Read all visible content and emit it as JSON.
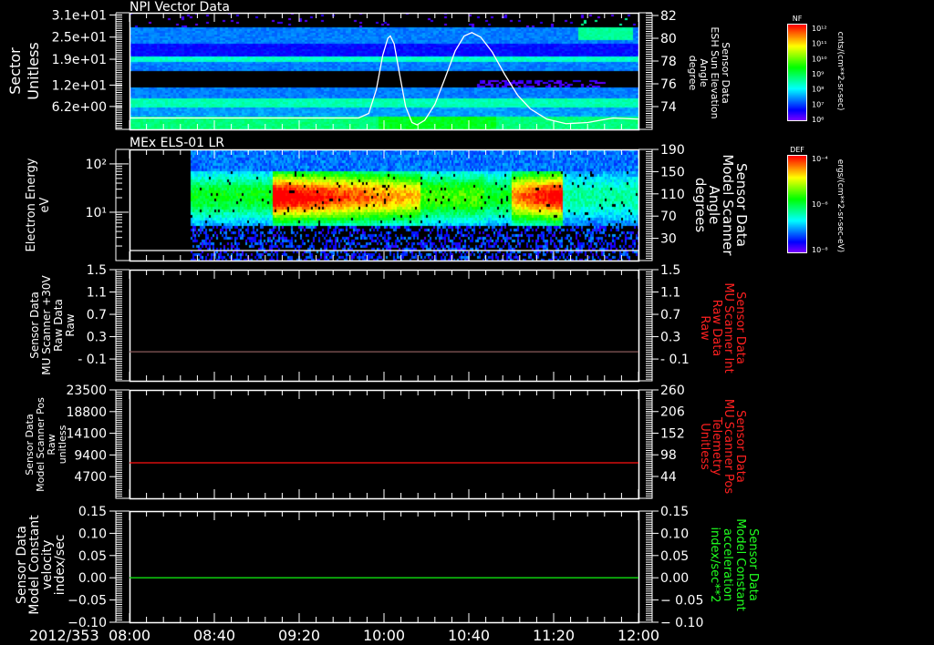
{
  "date_label": "2012/353",
  "time_axis": {
    "start_hour": 8,
    "end_hour": 12,
    "labels": [
      "08:00",
      "08:40",
      "09:20",
      "10:00",
      "10:40",
      "11:20",
      "12:00"
    ],
    "label_hours": [
      8,
      8.6667,
      9.3333,
      10,
      10.6667,
      11.3333,
      12
    ]
  },
  "colorbars": [
    {
      "title": "NF",
      "labels": [
        "10¹²",
        "10¹¹",
        "10¹⁰",
        "10⁹",
        "10⁸",
        "10⁷",
        "10⁶"
      ],
      "units": "cnts/(cm**2-sr-sec)"
    },
    {
      "title": "DEF",
      "labels": [
        "10⁻⁴",
        "10⁻⁶",
        "10⁻⁸"
      ],
      "units": "ergs/(cm**2-sr-sec-eV)"
    }
  ],
  "chart_data": [
    {
      "type": "heatmap",
      "title": "NPI Vector Data",
      "ylabel": [
        "Sector",
        "Unitless"
      ],
      "ylim": [
        0,
        31.6
      ],
      "yticks": [
        31,
        25,
        19,
        12,
        6.2
      ],
      "ytick_labels": [
        "3.1e+01",
        "2.5e+01",
        "1.9e+01",
        "1.2e+01",
        "6.2e+00"
      ],
      "colorbar": "NF",
      "right_axis": {
        "ylabel": [
          "Sensor Data",
          "ESH Sun Elevation",
          "Angle",
          "degree"
        ],
        "label_color": "#ffffff",
        "ylim": [
          72,
          82.24
        ],
        "yticks": [
          82,
          80,
          78,
          76,
          74
        ],
        "ytick_labels": [
          "82",
          "80",
          "78",
          "76",
          "74"
        ],
        "series": {
          "name": "ESH Sun Elevation Angle",
          "color": "#ffffff",
          "x": [
            8,
            9.8,
            9.88,
            9.94,
            9.99,
            10.03,
            10.05,
            10.08,
            10.12,
            10.17,
            10.22,
            10.26,
            10.32,
            10.4,
            10.48,
            10.56,
            10.63,
            10.69,
            10.76,
            10.85,
            10.95,
            11.05,
            11.15,
            11.28,
            11.43,
            11.6,
            11.8,
            12
          ],
          "y": [
            73.0,
            73.0,
            73.4,
            75.5,
            78.5,
            80.0,
            80.2,
            79.5,
            77.0,
            74.0,
            72.6,
            72.4,
            72.8,
            74.2,
            76.5,
            78.9,
            80.2,
            80.5,
            80.1,
            78.8,
            76.8,
            75.0,
            73.8,
            72.9,
            72.5,
            72.6,
            73.0,
            72.9
          ]
        }
      }
    },
    {
      "type": "heatmap",
      "title": "MEx ELS-01 LR",
      "ylabel": [
        "Electron Energy",
        "eV"
      ],
      "yscale": "log",
      "ylim": [
        1,
        199.5
      ],
      "yticks": [
        100,
        10
      ],
      "ytick_labels": [
        "10²",
        "10¹"
      ],
      "colorbar": "DEF",
      "data_start_hour": 8.48,
      "right_axis": {
        "ylabel": [
          "Sensor Data",
          "Model Scanner",
          "Angle",
          "degrees"
        ],
        "label_color": "#ffffff",
        "ylim": [
          -10,
          190
        ],
        "yticks": [
          190,
          150,
          110,
          70,
          30
        ],
        "ytick_labels": [
          "190",
          "150",
          "110",
          "70",
          "30"
        ],
        "series": {
          "name": "Model Scanner Angle",
          "color": "#ffffff",
          "x": [
            8,
            12
          ],
          "y": [
            8,
            8
          ]
        }
      }
    },
    {
      "type": "line",
      "ylabel": [
        "Sensor Data",
        "MU Scanner +30V",
        "Raw Data",
        "Raw"
      ],
      "ylim": [
        -0.49,
        1.5
      ],
      "yticks": [
        1.5,
        1.1,
        0.7,
        0.3,
        -0.1
      ],
      "ytick_labels": [
        "1.5",
        "1.1",
        "0.7",
        "0.3",
        "- 0.1"
      ],
      "right_axis": {
        "ylabel": [
          "Sensor Data",
          "MU Scanner Int",
          "Raw Data",
          "Raw"
        ],
        "label_color": "#ff2020",
        "ylim": [
          -0.49,
          1.5
        ],
        "yticks": [
          1.5,
          1.1,
          0.7,
          0.3,
          -0.1
        ],
        "ytick_labels": [
          "1.5",
          "1.1",
          "0.7",
          "0.3",
          "- 0.1"
        ],
        "series": {
          "name": "MU Scanner Int",
          "color": "#8a5a5a",
          "x": [
            8,
            12
          ],
          "y": [
            0.03,
            0.03
          ]
        }
      }
    },
    {
      "type": "line",
      "ylabel": [
        "Sensor Data",
        "Model Scanner Pos",
        "Raw",
        "unitless"
      ],
      "ylim": [
        0,
        23500
      ],
      "yticks": [
        23500,
        18800,
        14100,
        9400,
        4700
      ],
      "ytick_labels": [
        "23500",
        "18800",
        "14100",
        "9400",
        "4700"
      ],
      "right_axis": {
        "ylabel": [
          "Sensor Data",
          "MU Scanner Pos",
          "Telemetry",
          "Unitless"
        ],
        "label_color": "#ff2020",
        "ylim": [
          -10.6,
          260
        ],
        "yticks": [
          260,
          206,
          152,
          98,
          44
        ],
        "ytick_labels": [
          "260",
          "206",
          "152",
          "98",
          "44"
        ],
        "series": {
          "name": "MU Scanner Pos Telemetry",
          "color": "#ff1010",
          "x": [
            8,
            12
          ],
          "y": [
            78,
            78
          ]
        }
      }
    },
    {
      "type": "line",
      "ylabel": [
        "Sensor Data",
        "Model Constant",
        "velocity",
        "index/sec"
      ],
      "ylim": [
        -0.1,
        0.15
      ],
      "yticks": [
        0.15,
        0.1,
        0.05,
        0.0,
        -0.05,
        -0.1
      ],
      "ytick_labels": [
        "0.15",
        "0.10",
        "0.05",
        "0.00",
        "−0.05",
        "−0.10"
      ],
      "right_axis": {
        "ylabel": [
          "Sensor Data",
          "Model Constant",
          "acceleration",
          "index/sec**2"
        ],
        "label_color": "#20ff20",
        "ylim": [
          -0.1,
          0.15
        ],
        "yticks": [
          0.15,
          0.1,
          0.05,
          0.0,
          -0.05,
          -0.1
        ],
        "ytick_labels": [
          "0.15",
          "0.10",
          "0.05",
          "0.00",
          "− 0.05",
          "− 0.10"
        ],
        "series": {
          "name": "Model Constant acceleration",
          "color": "#10e010",
          "x": [
            8,
            12
          ],
          "y": [
            0,
            0
          ]
        }
      }
    }
  ]
}
